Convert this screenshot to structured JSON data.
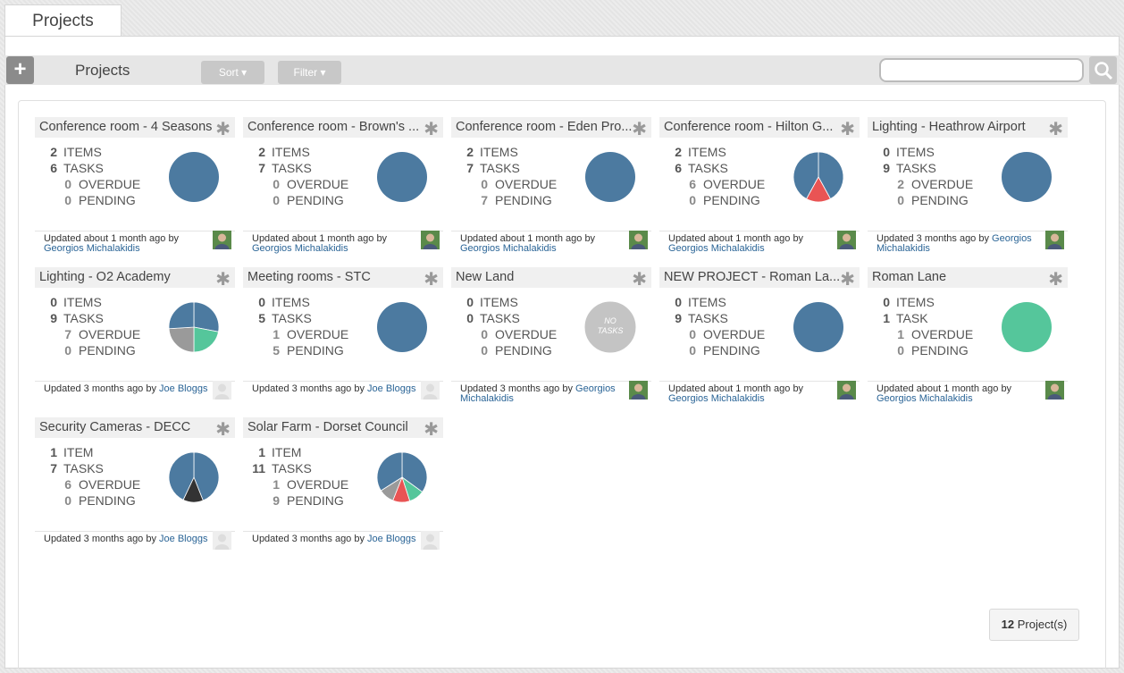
{
  "tab": "Projects",
  "toolbar": {
    "title": "Projects",
    "sort": "Sort",
    "filter": "Filter"
  },
  "projects": [
    {
      "title": "Conference room - 4 Seasons",
      "counts": [
        {
          "value": 2,
          "label": "ITEMS"
        },
        {
          "value": 6,
          "label": "TASKS"
        },
        {
          "value": 0,
          "label": "OVERDUE"
        },
        {
          "value": 0,
          "label": "PENDING"
        }
      ],
      "pie": [
        {
          "value": 100,
          "color": "#4c7aa0"
        }
      ],
      "updated": "Updated about 1 month ago by",
      "author": "Georgios Michalakidis"
    },
    {
      "title": "Conference room - Brown's ...",
      "counts": [
        {
          "value": 2,
          "label": "ITEMS"
        },
        {
          "value": 7,
          "label": "TASKS"
        },
        {
          "value": 0,
          "label": "OVERDUE"
        },
        {
          "value": 0,
          "label": "PENDING"
        }
      ],
      "pie": [
        {
          "value": 100,
          "color": "#4c7aa0"
        }
      ],
      "updated": "Updated about 1 month ago by",
      "author": "Georgios Michalakidis"
    },
    {
      "title": "Conference room - Eden Pro...",
      "counts": [
        {
          "value": 2,
          "label": "ITEMS"
        },
        {
          "value": 7,
          "label": "TASKS"
        },
        {
          "value": 0,
          "label": "OVERDUE"
        },
        {
          "value": 7,
          "label": "PENDING"
        }
      ],
      "pie": [
        {
          "value": 100,
          "color": "#4c7aa0"
        }
      ],
      "updated": "Updated about 1 month ago by",
      "author": "Georgios Michalakidis"
    },
    {
      "title": "Conference room - Hilton G...",
      "counts": [
        {
          "value": 2,
          "label": "ITEMS"
        },
        {
          "value": 6,
          "label": "TASKS"
        },
        {
          "value": 6,
          "label": "OVERDUE"
        },
        {
          "value": 0,
          "label": "PENDING"
        }
      ],
      "pie": [
        {
          "value": 42,
          "color": "#4c7aa0"
        },
        {
          "value": 16,
          "color": "#e95454"
        },
        {
          "value": 42,
          "color": "#4c7aa0"
        }
      ],
      "updated": "Updated about 1 month ago by",
      "author": "Georgios Michalakidis"
    },
    {
      "title": "Lighting - Heathrow Airport",
      "counts": [
        {
          "value": 0,
          "label": "ITEMS"
        },
        {
          "value": 9,
          "label": "TASKS"
        },
        {
          "value": 2,
          "label": "OVERDUE"
        },
        {
          "value": 0,
          "label": "PENDING"
        }
      ],
      "pie": [
        {
          "value": 100,
          "color": "#4c7aa0"
        }
      ],
      "updated": "Updated 3 months ago by",
      "author": "Georgios Michalakidis"
    },
    {
      "title": "Lighting - O2 Academy",
      "counts": [
        {
          "value": 0,
          "label": "ITEMS"
        },
        {
          "value": 9,
          "label": "TASKS"
        },
        {
          "value": 7,
          "label": "OVERDUE"
        },
        {
          "value": 0,
          "label": "PENDING"
        }
      ],
      "pie": [
        {
          "value": 28,
          "color": "#4c7aa0"
        },
        {
          "value": 22,
          "color": "#55c69b"
        },
        {
          "value": 24,
          "color": "#9a9a9a"
        },
        {
          "value": 26,
          "color": "#4c7aa0"
        }
      ],
      "updated": "Updated 3 months ago by",
      "author": "Joe Bloggs"
    },
    {
      "title": "Meeting rooms - STC",
      "counts": [
        {
          "value": 0,
          "label": "ITEMS"
        },
        {
          "value": 5,
          "label": "TASKS"
        },
        {
          "value": 1,
          "label": "OVERDUE"
        },
        {
          "value": 5,
          "label": "PENDING"
        }
      ],
      "pie": [
        {
          "value": 100,
          "color": "#4c7aa0"
        }
      ],
      "updated": "Updated 3 months ago by",
      "author": "Joe Bloggs"
    },
    {
      "title": "New Land",
      "counts": [
        {
          "value": 0,
          "label": "ITEMS"
        },
        {
          "value": 0,
          "label": "TASKS"
        },
        {
          "value": 0,
          "label": "OVERDUE"
        },
        {
          "value": 0,
          "label": "PENDING"
        }
      ],
      "pie": [],
      "pie_label": "NO TASKS",
      "updated": "Updated 3 months ago by",
      "author": "Georgios Michalakidis"
    },
    {
      "title": "NEW PROJECT - Roman La...",
      "counts": [
        {
          "value": 0,
          "label": "ITEMS"
        },
        {
          "value": 9,
          "label": "TASKS"
        },
        {
          "value": 0,
          "label": "OVERDUE"
        },
        {
          "value": 0,
          "label": "PENDING"
        }
      ],
      "pie": [
        {
          "value": 100,
          "color": "#4c7aa0"
        }
      ],
      "updated": "Updated about 1 month ago by",
      "author": "Georgios Michalakidis"
    },
    {
      "title": "Roman Lane",
      "counts": [
        {
          "value": 0,
          "label": "ITEMS"
        },
        {
          "value": 1,
          "label": "TASK"
        },
        {
          "value": 1,
          "label": "OVERDUE"
        },
        {
          "value": 0,
          "label": "PENDING"
        }
      ],
      "pie": [
        {
          "value": 100,
          "color": "#55c69b"
        }
      ],
      "updated": "Updated about 1 month ago by",
      "author": "Georgios Michalakidis"
    },
    {
      "title": "Security Cameras - DECC",
      "counts": [
        {
          "value": 1,
          "label": "ITEM"
        },
        {
          "value": 7,
          "label": "TASKS"
        },
        {
          "value": 6,
          "label": "OVERDUE"
        },
        {
          "value": 0,
          "label": "PENDING"
        }
      ],
      "pie": [
        {
          "value": 44,
          "color": "#4c7aa0"
        },
        {
          "value": 13,
          "color": "#333333"
        },
        {
          "value": 43,
          "color": "#4c7aa0"
        }
      ],
      "updated": "Updated 3 months ago by",
      "author": "Joe Bloggs"
    },
    {
      "title": "Solar Farm - Dorset Council",
      "counts": [
        {
          "value": 1,
          "label": "ITEM"
        },
        {
          "value": 11,
          "label": "TASKS"
        },
        {
          "value": 1,
          "label": "OVERDUE"
        },
        {
          "value": 9,
          "label": "PENDING"
        }
      ],
      "pie": [
        {
          "value": 35,
          "color": "#4c7aa0"
        },
        {
          "value": 10,
          "color": "#55c69b"
        },
        {
          "value": 11,
          "color": "#e95454"
        },
        {
          "value": 10,
          "color": "#9a9a9a"
        },
        {
          "value": 34,
          "color": "#4c7aa0"
        }
      ],
      "updated": "Updated 3 months ago by",
      "author": "Joe Bloggs"
    }
  ],
  "footer": {
    "count": 12,
    "label": "Project(s)"
  }
}
